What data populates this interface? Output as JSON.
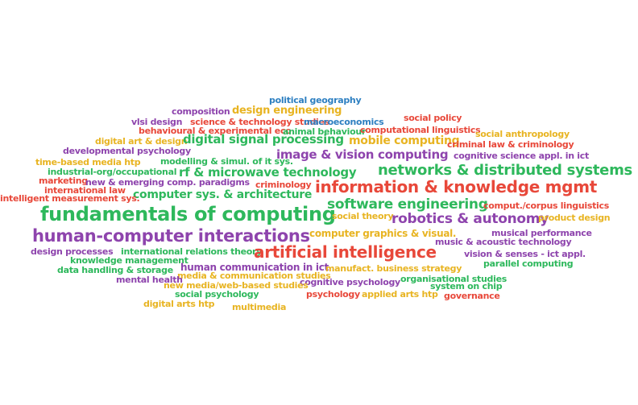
{
  "palette": {
    "red": "#e8483a",
    "green": "#2eb85c",
    "purple": "#8e44ad",
    "yellow": "#e8b422",
    "blue": "#2d7fc1"
  },
  "words": [
    {
      "text": "political geography",
      "color": "blue"
    },
    {
      "text": "composition",
      "color": "purple"
    },
    {
      "text": "design engineering",
      "color": "yellow"
    },
    {
      "text": "vlsi design",
      "color": "purple"
    },
    {
      "text": "science & technology studies",
      "color": "red"
    },
    {
      "text": "macroeconomics",
      "color": "blue"
    },
    {
      "text": "social policy",
      "color": "red"
    },
    {
      "text": "behavioural & experimental eco",
      "color": "red"
    },
    {
      "text": "animal behaviour",
      "color": "green"
    },
    {
      "text": "computational linguistics",
      "color": "red"
    },
    {
      "text": "social anthropology",
      "color": "yellow"
    },
    {
      "text": "digital art & design",
      "color": "yellow"
    },
    {
      "text": "digital signal processing",
      "color": "green"
    },
    {
      "text": "mobile computing",
      "color": "yellow"
    },
    {
      "text": "criminal law & criminology",
      "color": "red"
    },
    {
      "text": "developmental psychology",
      "color": "purple"
    },
    {
      "text": "image & vision computing",
      "color": "purple"
    },
    {
      "text": "cognitive science appl. in ict",
      "color": "purple"
    },
    {
      "text": "time-based media htp",
      "color": "yellow"
    },
    {
      "text": "modelling & simul. of it sys.",
      "color": "green"
    },
    {
      "text": "industrial-org/occupational",
      "color": "green"
    },
    {
      "text": "rf & microwave technology",
      "color": "green"
    },
    {
      "text": "networks & distributed systems",
      "color": "green"
    },
    {
      "text": "marketing",
      "color": "red"
    },
    {
      "text": "new & emerging comp. paradigms",
      "color": "purple"
    },
    {
      "text": "criminology",
      "color": "red"
    },
    {
      "text": "information & knowledge mgmt",
      "color": "red"
    },
    {
      "text": "international law",
      "color": "red"
    },
    {
      "text": "computer sys. & architecture",
      "color": "green"
    },
    {
      "text": "intelligent measurement sys.",
      "color": "red"
    },
    {
      "text": "software engineering",
      "color": "green"
    },
    {
      "text": "comput./corpus linguistics",
      "color": "red"
    },
    {
      "text": "fundamentals of computing",
      "color": "green"
    },
    {
      "text": "social theory",
      "color": "yellow"
    },
    {
      "text": "robotics & autonomy",
      "color": "purple"
    },
    {
      "text": "product design",
      "color": "yellow"
    },
    {
      "text": "computer graphics & visual.",
      "color": "yellow"
    },
    {
      "text": "musical performance",
      "color": "purple"
    },
    {
      "text": "human-computer interactions",
      "color": "purple"
    },
    {
      "text": "music & acoustic technology",
      "color": "purple"
    },
    {
      "text": "design processes",
      "color": "purple"
    },
    {
      "text": "international relations theory",
      "color": "green"
    },
    {
      "text": "artificial intelligence",
      "color": "red"
    },
    {
      "text": "vision & senses - ict appl.",
      "color": "purple"
    },
    {
      "text": "knowledge management",
      "color": "green"
    },
    {
      "text": "parallel computing",
      "color": "green"
    },
    {
      "text": "human communication in ict",
      "color": "purple"
    },
    {
      "text": "data handling & storage",
      "color": "green"
    },
    {
      "text": "manufact. business strategy",
      "color": "yellow"
    },
    {
      "text": "media & communication studies",
      "color": "yellow"
    },
    {
      "text": "organisational studies",
      "color": "green"
    },
    {
      "text": "mental health",
      "color": "purple"
    },
    {
      "text": "cognitive psychology",
      "color": "purple"
    },
    {
      "text": "system on chip",
      "color": "green"
    },
    {
      "text": "new media/web-based studies",
      "color": "yellow"
    },
    {
      "text": "social psychology",
      "color": "green"
    },
    {
      "text": "psychology",
      "color": "red"
    },
    {
      "text": "applied arts htp",
      "color": "yellow"
    },
    {
      "text": "governance",
      "color": "red"
    },
    {
      "text": "digital arts htp",
      "color": "yellow"
    },
    {
      "text": "multimedia",
      "color": "yellow"
    }
  ]
}
